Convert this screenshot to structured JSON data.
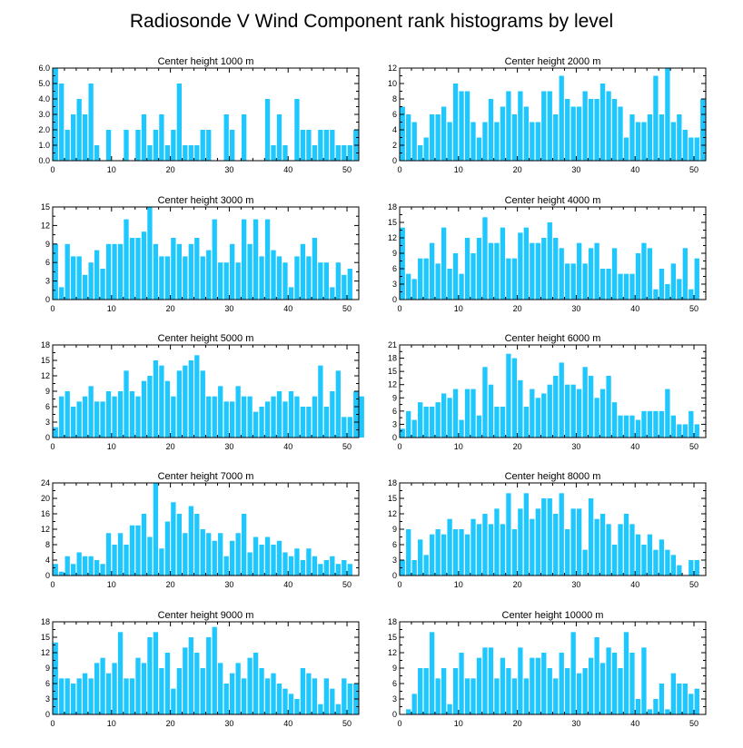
{
  "title": "Radiosonde V Wind Component rank histograms by level",
  "colors": {
    "bar": "#1ec8ff",
    "axis": "#000000",
    "background": "#ffffff"
  },
  "chart_data": [
    {
      "type": "bar",
      "title": "Center height 1000 m",
      "xlim": [
        0,
        52
      ],
      "xticks": [
        0,
        10,
        20,
        30,
        40,
        50
      ],
      "ylim": [
        0,
        6
      ],
      "yticks": [
        0,
        1,
        2,
        3,
        4,
        5,
        6
      ],
      "ytick_labels": [
        "0.0",
        "1.0",
        "2.0",
        "3.0",
        "4.0",
        "5.0",
        "6.0"
      ],
      "values": [
        6,
        5,
        2,
        3,
        4,
        3,
        5,
        1,
        0,
        2,
        0,
        0,
        2,
        0,
        2,
        3,
        1,
        2,
        3,
        1,
        2,
        5,
        1,
        1,
        1,
        2,
        2,
        0,
        0,
        3,
        2,
        0,
        3,
        0,
        0,
        0,
        4,
        1,
        3,
        1,
        0,
        4,
        2,
        2,
        1,
        2,
        2,
        2,
        1,
        1,
        1,
        2
      ]
    },
    {
      "type": "bar",
      "title": "Center height 2000 m",
      "xlim": [
        0,
        52
      ],
      "xticks": [
        0,
        10,
        20,
        30,
        40,
        50
      ],
      "ylim": [
        0,
        12
      ],
      "yticks": [
        0,
        2,
        4,
        6,
        8,
        10,
        12
      ],
      "ytick_labels": [
        "0",
        "2",
        "4",
        "6",
        "8",
        "10",
        "12"
      ],
      "values": [
        7,
        6,
        5,
        2,
        3,
        6,
        6,
        7,
        5,
        10,
        9,
        9,
        5,
        3,
        5,
        8,
        5,
        7,
        9,
        6,
        9,
        7,
        5,
        5,
        9,
        9,
        6,
        11,
        8,
        7,
        7,
        9,
        8,
        8,
        10,
        9,
        8,
        7,
        3,
        6,
        5,
        5,
        6,
        11,
        6,
        12,
        5,
        6,
        4,
        3,
        3,
        8
      ]
    },
    {
      "type": "bar",
      "title": "Center height 3000 m",
      "xlim": [
        0,
        52
      ],
      "xticks": [
        0,
        10,
        20,
        30,
        40,
        50
      ],
      "ylim": [
        0,
        15
      ],
      "yticks": [
        0,
        3,
        6,
        9,
        12,
        15
      ],
      "ytick_labels": [
        "0",
        "3",
        "6",
        "9",
        "12",
        "15"
      ],
      "values": [
        9,
        2,
        9,
        7,
        7,
        4,
        6,
        8,
        5,
        9,
        9,
        9,
        13,
        10,
        10,
        11,
        15,
        9,
        7,
        7,
        10,
        9,
        7,
        9,
        10,
        7,
        8,
        13,
        6,
        6,
        9,
        6,
        13,
        9,
        13,
        7,
        13,
        8,
        7,
        6,
        2,
        7,
        9,
        7,
        10,
        6,
        6,
        2,
        6,
        4,
        5,
        0
      ]
    },
    {
      "type": "bar",
      "title": "Center height 4000 m",
      "xlim": [
        0,
        52
      ],
      "xticks": [
        0,
        10,
        20,
        30,
        40,
        50
      ],
      "ylim": [
        0,
        18
      ],
      "yticks": [
        0,
        3,
        6,
        9,
        12,
        15,
        18
      ],
      "ytick_labels": [
        "0",
        "3",
        "6",
        "9",
        "12",
        "15",
        "18"
      ],
      "values": [
        14,
        5,
        4,
        8,
        8,
        11,
        7,
        14,
        6,
        9,
        5,
        12,
        9,
        12,
        16,
        11,
        11,
        14,
        8,
        8,
        13,
        14,
        11,
        11,
        12,
        15,
        12,
        10,
        7,
        7,
        11,
        7,
        10,
        11,
        6,
        6,
        10,
        5,
        5,
        5,
        9,
        11,
        10,
        2,
        6,
        3,
        7,
        4,
        10,
        2,
        8,
        0
      ]
    },
    {
      "type": "bar",
      "title": "Center height 5000 m",
      "xlim": [
        0,
        52
      ],
      "xticks": [
        0,
        10,
        20,
        30,
        40,
        50
      ],
      "ylim": [
        0,
        18
      ],
      "yticks": [
        0,
        3,
        6,
        9,
        12,
        15,
        18
      ],
      "ytick_labels": [
        "0",
        "3",
        "6",
        "9",
        "12",
        "15",
        "18"
      ],
      "values": [
        2,
        8,
        9,
        6,
        7,
        8,
        10,
        7,
        7,
        9,
        8,
        9,
        13,
        9,
        8,
        11,
        12,
        15,
        14,
        11,
        8,
        13,
        14,
        15,
        16,
        13,
        8,
        8,
        10,
        7,
        7,
        10,
        8,
        8,
        5,
        6,
        7,
        8,
        9,
        7,
        9,
        8,
        6,
        6,
        8,
        14,
        6,
        9,
        13,
        4,
        4,
        9,
        8
      ]
    },
    {
      "type": "bar",
      "title": "Center height 6000 m",
      "xlim": [
        0,
        52
      ],
      "xticks": [
        0,
        10,
        20,
        30,
        40,
        50
      ],
      "ylim": [
        0,
        21
      ],
      "yticks": [
        0,
        3,
        6,
        9,
        12,
        15,
        18,
        21
      ],
      "ytick_labels": [
        "0",
        "3",
        "6",
        "9",
        "12",
        "15",
        "18",
        "21"
      ],
      "values": [
        2,
        6,
        4,
        8,
        7,
        7,
        8,
        10,
        9,
        11,
        4,
        11,
        11,
        5,
        16,
        12,
        7,
        7,
        19,
        18,
        13,
        7,
        11,
        9,
        10,
        12,
        14,
        17,
        12,
        12,
        11,
        16,
        14,
        9,
        11,
        14,
        8,
        5,
        5,
        5,
        4,
        6,
        6,
        6,
        6,
        11,
        5,
        3,
        3,
        6,
        3,
        0
      ]
    },
    {
      "type": "bar",
      "title": "Center height 7000 m",
      "xlim": [
        0,
        52
      ],
      "xticks": [
        0,
        10,
        20,
        30,
        40,
        50
      ],
      "ylim": [
        0,
        24
      ],
      "yticks": [
        0,
        4,
        8,
        12,
        16,
        20,
        24
      ],
      "ytick_labels": [
        "0",
        "4",
        "8",
        "12",
        "16",
        "20",
        "24"
      ],
      "values": [
        3,
        1,
        5,
        3,
        6,
        5,
        5,
        4,
        3,
        11,
        8,
        11,
        8,
        13,
        13,
        16,
        10,
        24,
        7,
        14,
        19,
        16,
        11,
        18,
        16,
        12,
        11,
        9,
        11,
        5,
        9,
        11,
        16,
        6,
        10,
        8,
        10,
        8,
        9,
        6,
        5,
        7,
        4,
        7,
        5,
        3,
        4,
        5,
        3,
        4,
        3,
        0
      ]
    },
    {
      "type": "bar",
      "title": "Center height 8000 m",
      "xlim": [
        0,
        52
      ],
      "xticks": [
        0,
        10,
        20,
        30,
        40,
        50
      ],
      "ylim": [
        0,
        18
      ],
      "yticks": [
        0,
        3,
        6,
        9,
        12,
        15,
        18
      ],
      "ytick_labels": [
        "0",
        "3",
        "6",
        "9",
        "12",
        "15",
        "18"
      ],
      "values": [
        3,
        9,
        3,
        7,
        4,
        8,
        9,
        8,
        11,
        9,
        9,
        8,
        11,
        10,
        12,
        10,
        13,
        10,
        16,
        9,
        13,
        16,
        11,
        13,
        15,
        15,
        12,
        16,
        9,
        13,
        13,
        5,
        15,
        11,
        12,
        10,
        6,
        10,
        12,
        10,
        8,
        6,
        8,
        5,
        7,
        5,
        4,
        2,
        0,
        3,
        3,
        0
      ]
    },
    {
      "type": "bar",
      "title": "Center height 9000 m",
      "xlim": [
        0,
        52
      ],
      "xticks": [
        0,
        10,
        20,
        30,
        40,
        50
      ],
      "ylim": [
        0,
        18
      ],
      "yticks": [
        0,
        3,
        6,
        9,
        12,
        15,
        18
      ],
      "ytick_labels": [
        "0",
        "3",
        "6",
        "9",
        "12",
        "15",
        "18"
      ],
      "values": [
        14,
        7,
        7,
        6,
        7,
        8,
        7,
        10,
        11,
        8,
        10,
        16,
        7,
        7,
        11,
        10,
        15,
        16,
        9,
        12,
        5,
        9,
        13,
        15,
        12,
        9,
        15,
        17,
        10,
        6,
        8,
        10,
        7,
        11,
        12,
        9,
        7,
        8,
        6,
        5,
        4,
        3,
        9,
        8,
        7,
        2,
        7,
        5,
        2,
        7,
        6,
        6
      ]
    },
    {
      "type": "bar",
      "title": "Center height 10000 m",
      "xlim": [
        0,
        52
      ],
      "xticks": [
        0,
        10,
        20,
        30,
        40,
        50
      ],
      "ylim": [
        0,
        18
      ],
      "yticks": [
        0,
        3,
        6,
        9,
        12,
        15,
        18
      ],
      "ytick_labels": [
        "0",
        "3",
        "6",
        "9",
        "12",
        "15",
        "18"
      ],
      "values": [
        0,
        1,
        4,
        9,
        9,
        16,
        7,
        9,
        2,
        9,
        12,
        7,
        7,
        11,
        13,
        13,
        7,
        11,
        9,
        7,
        13,
        7,
        11,
        11,
        12,
        9,
        7,
        12,
        9,
        16,
        8,
        9,
        11,
        15,
        10,
        13,
        12,
        9,
        16,
        12,
        3,
        13,
        1,
        3,
        6,
        1,
        8,
        6,
        6,
        4,
        5,
        0
      ]
    }
  ]
}
